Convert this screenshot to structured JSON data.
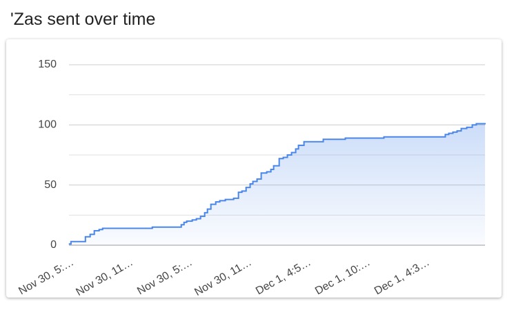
{
  "chart_data": {
    "type": "line",
    "step": true,
    "area": true,
    "title": "'Zas sent over time",
    "x": [
      -0.35,
      -0.2,
      1.26,
      1.74,
      2.16,
      2.65,
      3.0,
      8.03,
      10.96,
      11.24,
      11.51,
      12.07,
      12.49,
      12.91,
      13.33,
      13.61,
      13.96,
      14.45,
      14.86,
      15.42,
      16.26,
      16.75,
      17.1,
      17.52,
      17.93,
      18.21,
      18.63,
      19.05,
      19.61,
      20.03,
      20.31,
      20.87,
      21.28,
      21.7,
      22.12,
      22.54,
      22.82,
      23.38,
      25.33,
      27.56,
      31.47,
      37.68,
      38.03,
      38.45,
      38.87,
      39.29,
      39.85,
      40.41,
      40.82
    ],
    "values": [
      1,
      3,
      7,
      9,
      12,
      13,
      14,
      15,
      17,
      19,
      20,
      21,
      22,
      24,
      27,
      30,
      34,
      36,
      37,
      38,
      39,
      44,
      45,
      48,
      51,
      53,
      55,
      60,
      61,
      63,
      66,
      72,
      73,
      75,
      77,
      80,
      83,
      86,
      88,
      89,
      90,
      92,
      93,
      94,
      95,
      97,
      98,
      100,
      101
    ],
    "color": "#4a86e8",
    "xlim": [
      -0.4,
      41.7
    ],
    "xticks": [
      {
        "value": 0,
        "label": "Nov 30, 5:…"
      },
      {
        "value": 6,
        "label": "Nov 30, 11…"
      },
      {
        "value": 12,
        "label": "Nov 30, 5:…"
      },
      {
        "value": 18,
        "label": "Nov 30, 11…"
      },
      {
        "value": 24,
        "label": "Dec 1, 4:5…"
      },
      {
        "value": 30,
        "label": "Dec 1, 10:…"
      },
      {
        "value": 36,
        "label": "Dec 1, 4:3…"
      }
    ],
    "ylim": [
      0,
      150
    ],
    "yticks": [
      0,
      50,
      100,
      150
    ],
    "minor_yticks": [
      25,
      75,
      125
    ],
    "grid": true
  }
}
